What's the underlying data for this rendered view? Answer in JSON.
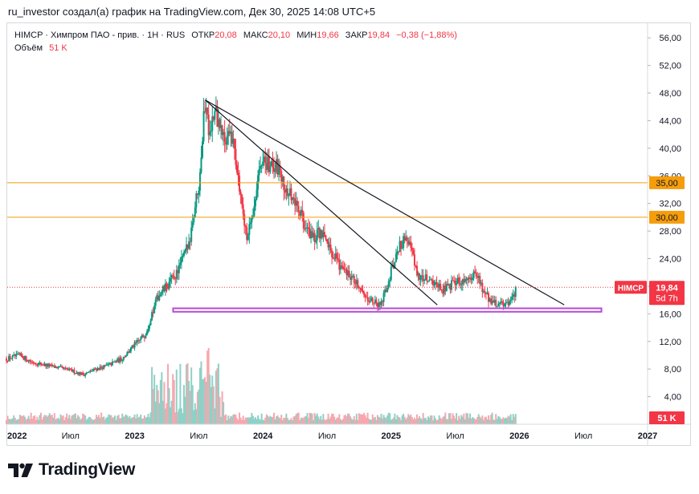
{
  "caption": "ru_investor создал(а) график на TradingView.com, Дек 30, 2025 14:08 UTC+5",
  "legend": {
    "symbol": "HIMCP · Химпром ПАО - прив. · 1Н · RUS",
    "open_label": "ОТКР",
    "open": "20,08",
    "high_label": "МАКС",
    "high": "20,10",
    "low_label": "МИН",
    "low": "19,66",
    "close_label": "ЗАКР",
    "close": "19,84",
    "change": "−0,38 (−1,88%)",
    "volume_label": "Объём",
    "volume": "51 K"
  },
  "brand": {
    "name": "TradingView"
  },
  "colors": {
    "up": "#089981",
    "down": "#f23645",
    "vol_up": "#8fd1c6",
    "vol_down": "#f7a7ae",
    "level": "#f59d0c",
    "support": "#b54bd6",
    "trend": "#131722"
  },
  "chart_data": {
    "type": "candlestick",
    "title": "HIMCP · Химпром ПАО - прив. · 1Н · RUS",
    "currency": "RUB",
    "ylim": [
      0,
      58
    ],
    "y_ticks": [
      "4,00",
      "8,00",
      "12,00",
      "16,00",
      "20,00",
      "24,00",
      "28,00",
      "32,00",
      "36,00",
      "40,00",
      "44,00",
      "48,00",
      "52,00",
      "56,00"
    ],
    "y_tick_values": [
      4,
      8,
      12,
      16,
      20,
      24,
      28,
      32,
      36,
      40,
      44,
      48,
      52,
      56
    ],
    "xlim": [
      2022.0,
      2027.0
    ],
    "x_ticks": [
      {
        "t": 2022.0,
        "label": "2022"
      },
      {
        "t": 2022.5,
        "label": "Июл"
      },
      {
        "t": 2023.0,
        "label": "2023"
      },
      {
        "t": 2023.5,
        "label": "Июл"
      },
      {
        "t": 2024.0,
        "label": "2024"
      },
      {
        "t": 2024.5,
        "label": "Июл"
      },
      {
        "t": 2025.0,
        "label": "2025"
      },
      {
        "t": 2025.5,
        "label": "Июл"
      },
      {
        "t": 2026.0,
        "label": "2026"
      },
      {
        "t": 2026.5,
        "label": "Июл"
      },
      {
        "t": 2027.0,
        "label": "2027"
      }
    ],
    "price_path": [
      [
        2022.0,
        9.5
      ],
      [
        2022.1,
        10.0
      ],
      [
        2022.2,
        9.0
      ],
      [
        2022.3,
        8.6
      ],
      [
        2022.4,
        8.2
      ],
      [
        2022.5,
        7.8
      ],
      [
        2022.6,
        7.2
      ],
      [
        2022.7,
        8.0
      ],
      [
        2022.8,
        8.6
      ],
      [
        2022.9,
        9.5
      ],
      [
        2023.0,
        11.5
      ],
      [
        2023.08,
        13.0
      ],
      [
        2023.13,
        15.5
      ],
      [
        2023.18,
        18.5
      ],
      [
        2023.25,
        20.0
      ],
      [
        2023.33,
        22.0
      ],
      [
        2023.42,
        26.0
      ],
      [
        2023.5,
        35.0
      ],
      [
        2023.55,
        47.0
      ],
      [
        2023.58,
        43.0
      ],
      [
        2023.63,
        45.0
      ],
      [
        2023.7,
        41.0
      ],
      [
        2023.75,
        43.0
      ],
      [
        2023.82,
        34.0
      ],
      [
        2023.88,
        27.0
      ],
      [
        2023.93,
        32.0
      ],
      [
        2024.0,
        39.0
      ],
      [
        2024.05,
        37.0
      ],
      [
        2024.1,
        38.0
      ],
      [
        2024.15,
        35.0
      ],
      [
        2024.22,
        33.0
      ],
      [
        2024.3,
        30.0
      ],
      [
        2024.38,
        27.0
      ],
      [
        2024.45,
        28.0
      ],
      [
        2024.5,
        26.0
      ],
      [
        2024.57,
        24.0
      ],
      [
        2024.62,
        22.5
      ],
      [
        2024.7,
        21.0
      ],
      [
        2024.78,
        19.0
      ],
      [
        2024.85,
        18.0
      ],
      [
        2024.9,
        17.0
      ],
      [
        2024.95,
        19.0
      ],
      [
        2025.0,
        22.0
      ],
      [
        2025.05,
        25.0
      ],
      [
        2025.1,
        27.0
      ],
      [
        2025.15,
        26.0
      ],
      [
        2025.2,
        22.0
      ],
      [
        2025.27,
        21.0
      ],
      [
        2025.33,
        20.0
      ],
      [
        2025.4,
        19.5
      ],
      [
        2025.5,
        20.5
      ],
      [
        2025.6,
        21.5
      ],
      [
        2025.67,
        22.0
      ],
      [
        2025.72,
        19.0
      ],
      [
        2025.8,
        17.5
      ],
      [
        2025.87,
        17.2
      ],
      [
        2025.93,
        18.0
      ],
      [
        2025.98,
        19.84
      ]
    ],
    "markers": {
      "last_price": 19.84,
      "last_price_label": "19,84",
      "last_symbol": "HIMCP",
      "countdown": "5d 7h",
      "level_35": "35,00",
      "level_30": "30,00",
      "volume_badge": "51 K"
    },
    "drawings": {
      "horizontal_levels": [
        35,
        30
      ],
      "trendlines": [
        {
          "from": [
            2023.55,
            47.0
          ],
          "to": [
            2025.36,
            17.3
          ]
        },
        {
          "from": [
            2023.55,
            47.0
          ],
          "to": [
            2026.35,
            17.3
          ]
        }
      ],
      "support_zone": {
        "t0": 2023.3,
        "t1": 2026.64,
        "y_low": 16.3,
        "y_high": 16.8
      }
    }
  }
}
